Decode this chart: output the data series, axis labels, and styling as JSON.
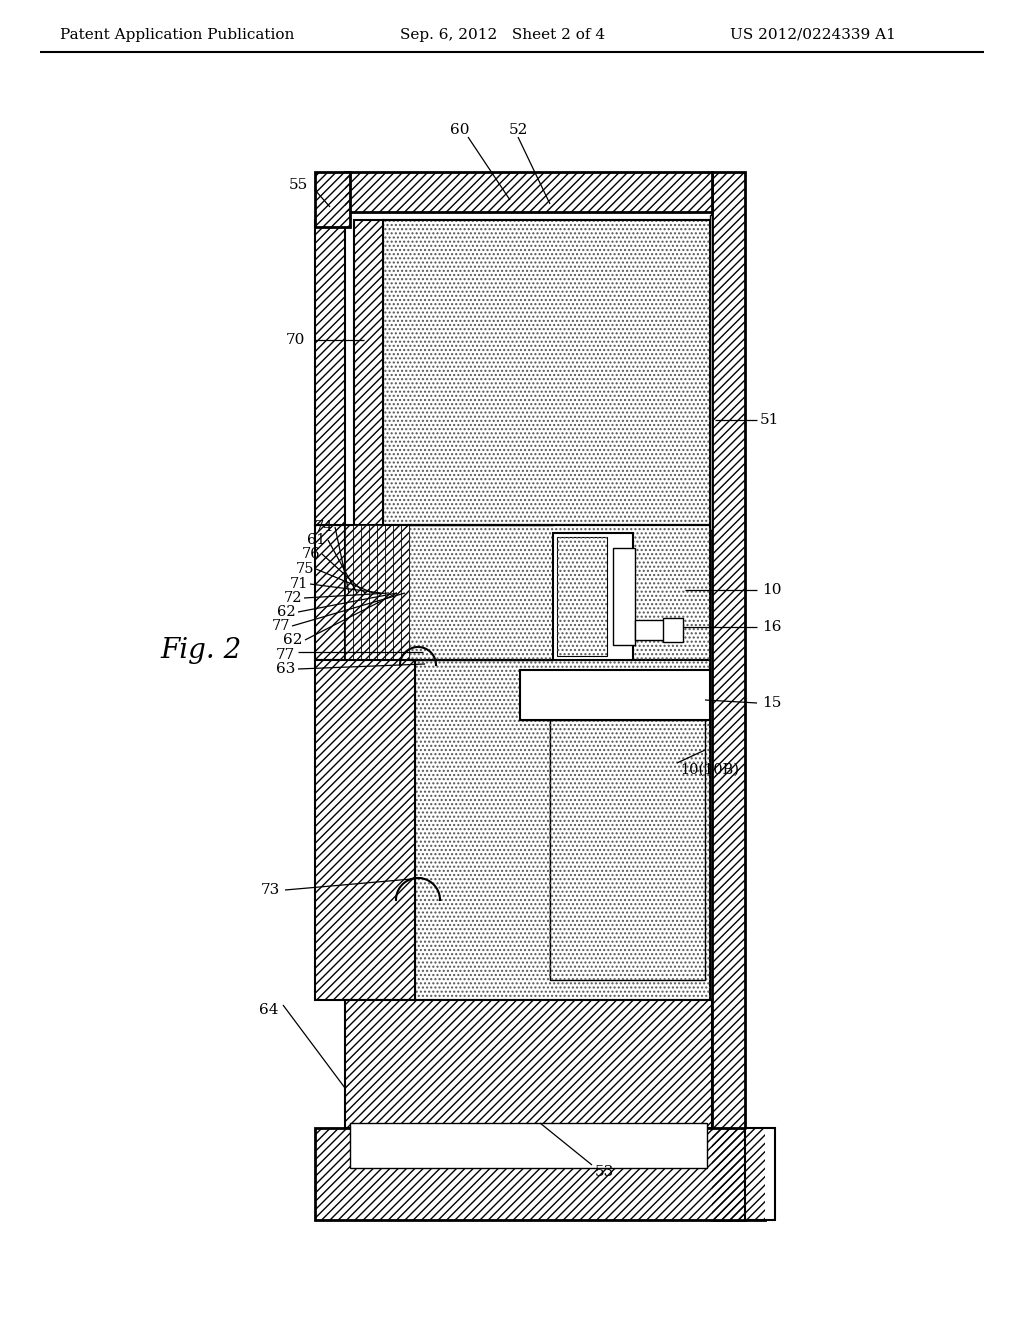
{
  "title_left": "Patent Application Publication",
  "title_mid": "Sep. 6, 2012   Sheet 2 of 4",
  "title_right": "US 2012/0224339 A1",
  "fig_label": "Fig. 2",
  "background_color": "#ffffff"
}
